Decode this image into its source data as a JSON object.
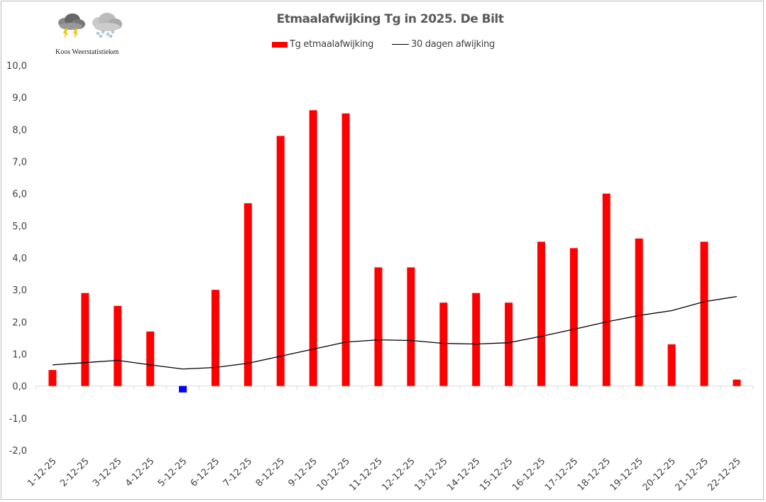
{
  "logo": {
    "text": "Koos Weerstatistieken",
    "icons": [
      "thunderstorm-cloud-icon",
      "snow-cloud-icon"
    ]
  },
  "chart_data": {
    "type": "bar",
    "title": "Etmaalafwijking Tg in 2025. De Bilt",
    "categories": [
      "1-12-25",
      "2-12-25",
      "3-12-25",
      "4-12-25",
      "5-12-25",
      "6-12-25",
      "7-12-25",
      "8-12-25",
      "9-12-25",
      "10-12-25",
      "11-12-25",
      "12-12-25",
      "13-12-25",
      "14-12-25",
      "15-12-25",
      "16-12-25",
      "17-12-25",
      "18-12-25",
      "19-12-25",
      "20-12-25",
      "21-12-25",
      "22-12-25"
    ],
    "series": [
      {
        "name": "Tg etmaalafwijking",
        "type": "bar",
        "color": "#ff0000",
        "negative_color": "#0000ff",
        "values": [
          0.5,
          2.9,
          2.5,
          1.7,
          -0.2,
          3.0,
          5.7,
          7.8,
          8.6,
          8.5,
          3.7,
          3.7,
          2.6,
          2.9,
          2.6,
          4.5,
          4.3,
          6.0,
          4.6,
          1.3,
          4.5,
          0.2
        ]
      },
      {
        "name": "30 dagen afwijking",
        "type": "line",
        "color": "#000000",
        "values": [
          0.66,
          0.73,
          0.8,
          0.66,
          0.53,
          0.58,
          0.71,
          0.93,
          1.15,
          1.37,
          1.44,
          1.42,
          1.33,
          1.31,
          1.35,
          1.55,
          1.77,
          2.0,
          2.2,
          2.35,
          2.63,
          2.79
        ]
      }
    ],
    "ylim": [
      -2,
      10
    ],
    "yticks": [
      "-2,0",
      "-1,0",
      "0,0",
      "1,0",
      "2,0",
      "3,0",
      "4,0",
      "5,0",
      "6,0",
      "7,0",
      "8,0",
      "9,0",
      "10,0"
    ],
    "xlabel": "",
    "ylabel": "",
    "grid": false,
    "legend": "top-center"
  }
}
